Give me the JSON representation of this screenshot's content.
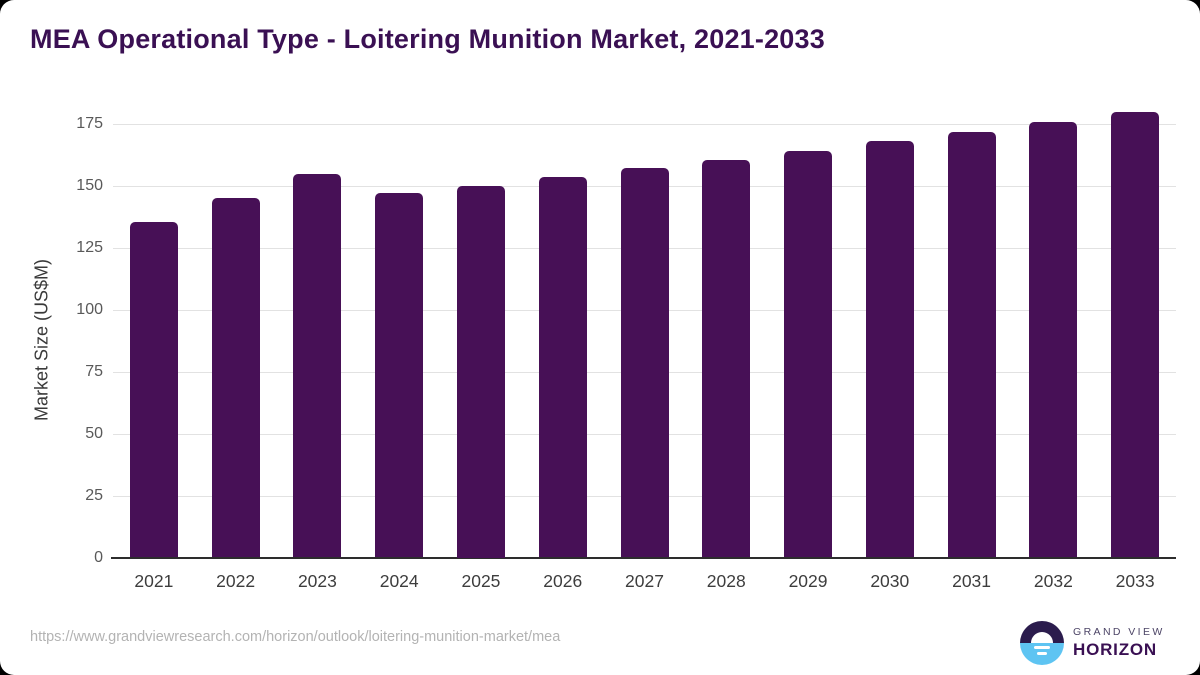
{
  "page": {
    "title": "MEA Operational Type - Loitering Munition Market, 2021-2033"
  },
  "chart_data": {
    "type": "bar",
    "title": "MEA Operational Type - Loitering Munition Market, 2021-2033",
    "categories": [
      "2021",
      "2022",
      "2023",
      "2024",
      "2025",
      "2026",
      "2027",
      "2028",
      "2029",
      "2030",
      "2031",
      "2032",
      "2033"
    ],
    "values": [
      135.4,
      144.8,
      154.6,
      146.8,
      150.0,
      153.4,
      157.0,
      160.4,
      164.0,
      167.8,
      171.6,
      175.6,
      179.7
    ],
    "xlabel": "",
    "ylabel": "Market Size (US$M)",
    "yticks": [
      0,
      25,
      50,
      75,
      100,
      125,
      150,
      175
    ],
    "ylim": [
      0,
      185
    ],
    "grid": "horizontal",
    "legend_position": "none",
    "bar_color": "#471056",
    "gridline_color": "#e2e2e2",
    "axis_line_color": "#2d2d2d"
  },
  "footer": {
    "source_url": "https://www.grandviewresearch.com/horizon/outlook/loitering-munition-market/mea",
    "logo": {
      "icon": "sunrise-circle-icon",
      "brand_line1": "GRAND VIEW",
      "brand_line2": "HORIZON"
    }
  },
  "colors": {
    "title": "#3A1053",
    "background": "#ffffff",
    "page_behind_card": "#000000",
    "y_tick_text": "#595959",
    "x_tick_text": "#3d3d3d",
    "url_text": "#b3b3b3",
    "logo_top_half": "#2b1c4d",
    "logo_bottom_half": "#5ec4f2"
  }
}
